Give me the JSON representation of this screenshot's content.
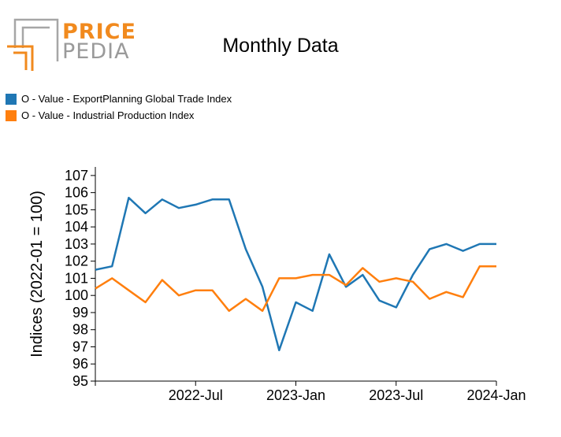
{
  "logo": {
    "word1": "PRICE",
    "word2": "PEDIA"
  },
  "colors": {
    "series1": "#1f77b4",
    "series2": "#ff7f0e",
    "logo_orange": "#f18a1e",
    "logo_gray": "#9a9a9a"
  },
  "chart_data": {
    "type": "line",
    "title": "Monthly Data",
    "xlabel": "",
    "ylabel": "Indices (2022-01 = 100)",
    "ylim": [
      95,
      107.5
    ],
    "yticks": [
      95,
      96,
      97,
      98,
      99,
      100,
      101,
      102,
      103,
      104,
      105,
      106,
      107
    ],
    "xticks": [
      "2022-Jul",
      "2023-Jan",
      "2023-Jul",
      "2024-Jan"
    ],
    "x": [
      "2022-01",
      "2022-02",
      "2022-03",
      "2022-04",
      "2022-05",
      "2022-06",
      "2022-07",
      "2022-08",
      "2022-09",
      "2022-10",
      "2022-11",
      "2022-12",
      "2023-01",
      "2023-02",
      "2023-03",
      "2023-04",
      "2023-05",
      "2023-06",
      "2023-07",
      "2023-08",
      "2023-09",
      "2023-10",
      "2023-11",
      "2023-12",
      "2024-01"
    ],
    "legend_position": "top-left",
    "grid": false,
    "series": [
      {
        "name": "O - Value - ExportPlanning Global Trade Index",
        "values": [
          101.5,
          101.7,
          105.7,
          104.8,
          105.6,
          105.1,
          105.3,
          105.6,
          105.6,
          102.7,
          100.5,
          96.8,
          99.6,
          99.1,
          102.4,
          100.5,
          101.2,
          99.7,
          99.3,
          101.2,
          102.7,
          103.0,
          102.6,
          103.0,
          103.0
        ]
      },
      {
        "name": "O - Value - Industrial Production Index",
        "values": [
          100.4,
          101.0,
          100.3,
          99.6,
          100.9,
          100.0,
          100.3,
          100.3,
          99.1,
          99.8,
          99.1,
          101.0,
          101.0,
          101.2,
          101.2,
          100.6,
          101.6,
          100.8,
          101.0,
          100.8,
          99.8,
          100.2,
          99.9,
          101.7,
          101.7
        ]
      }
    ]
  }
}
